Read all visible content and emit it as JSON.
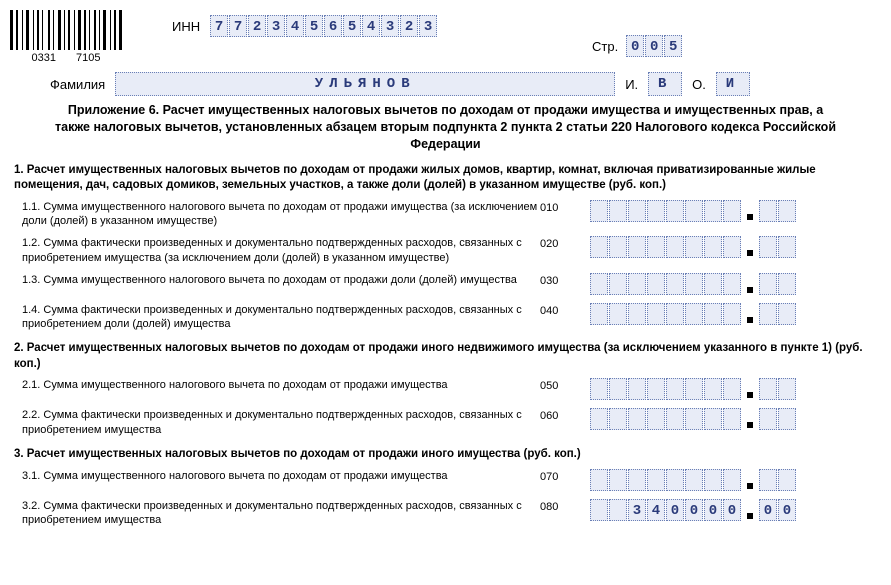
{
  "barcode": {
    "num1": "0331",
    "num2": "7105"
  },
  "inn": {
    "label": "ИНН",
    "digits": [
      "7",
      "7",
      "2",
      "3",
      "4",
      "5",
      "6",
      "5",
      "4",
      "3",
      "2",
      "3"
    ]
  },
  "page": {
    "label": "Стр.",
    "digits": [
      "0",
      "0",
      "5"
    ]
  },
  "name": {
    "surname_label": "Фамилия",
    "surname": "УЛЬЯНОВ",
    "i_label": "И.",
    "i_val": "В",
    "o_label": "О.",
    "o_val": "И"
  },
  "heading": "Приложение 6. Расчет имущественных налоговых вычетов по доходам от продажи имущества и имущественных прав, а также налоговых вычетов, установленных абзацем вторым подпункта 2 пункта 2 статьи 220 Налогового кодекса Российской Федерации",
  "sections": [
    {
      "title": "1. Расчет имущественных налоговых вычетов по доходам от продажи жилых домов, квартир, комнат, включая приватизированные жилые помещения, дач, садовых домиков, земельных участков, а также доли (долей) в указанном имуществе (руб. коп.)",
      "lines": [
        {
          "label": "1.1. Сумма имущественного налогового вычета по доходам от продажи имущества (за исключением доли (долей) в указанном имуществе)",
          "code": "010",
          "rub": [
            "",
            "",
            "",
            "",
            "",
            "",
            "",
            ""
          ],
          "kop": [
            "",
            ""
          ]
        },
        {
          "label": "1.2. Сумма фактически произведенных и документально подтвержденных расходов, связанных с приобретением имущества (за исключением доли (долей) в указанном имуществе)",
          "code": "020",
          "rub": [
            "",
            "",
            "",
            "",
            "",
            "",
            "",
            ""
          ],
          "kop": [
            "",
            ""
          ]
        },
        {
          "label": "1.3. Сумма имущественного налогового вычета по доходам от продажи доли (долей) имущества",
          "code": "030",
          "rub": [
            "",
            "",
            "",
            "",
            "",
            "",
            "",
            ""
          ],
          "kop": [
            "",
            ""
          ]
        },
        {
          "label": "1.4. Сумма фактически произведенных и документально подтвержденных расходов, связанных с приобретением доли (долей) имущества",
          "code": "040",
          "rub": [
            "",
            "",
            "",
            "",
            "",
            "",
            "",
            ""
          ],
          "kop": [
            "",
            ""
          ]
        }
      ]
    },
    {
      "title": "2. Расчет имущественных налоговых вычетов по доходам от продажи иного недвижимого имущества (за исключением указанного в пункте 1) (руб. коп.)",
      "lines": [
        {
          "label": "2.1. Сумма имущественного налогового вычета по доходам от продажи имущества",
          "code": "050",
          "rub": [
            "",
            "",
            "",
            "",
            "",
            "",
            "",
            ""
          ],
          "kop": [
            "",
            ""
          ]
        },
        {
          "label": "2.2. Сумма фактически произведенных и документально подтвержденных расходов, связанных с приобретением имущества",
          "code": "060",
          "rub": [
            "",
            "",
            "",
            "",
            "",
            "",
            "",
            ""
          ],
          "kop": [
            "",
            ""
          ]
        }
      ]
    },
    {
      "title": "3. Расчет имущественных налоговых вычетов по доходам от продажи иного имущества (руб. коп.)",
      "lines": [
        {
          "label": "3.1. Сумма имущественного налогового вычета по доходам от продажи имущества",
          "code": "070",
          "rub": [
            "",
            "",
            "",
            "",
            "",
            "",
            "",
            ""
          ],
          "kop": [
            "",
            ""
          ]
        },
        {
          "label": "3.2. Сумма фактически произведенных и документально подтвержденных расходов, связанных с приобретением имущества",
          "code": "080",
          "rub": [
            "",
            "",
            "3",
            "4",
            "0",
            "0",
            "0",
            "0"
          ],
          "kop": [
            "0",
            "0"
          ]
        }
      ]
    }
  ]
}
